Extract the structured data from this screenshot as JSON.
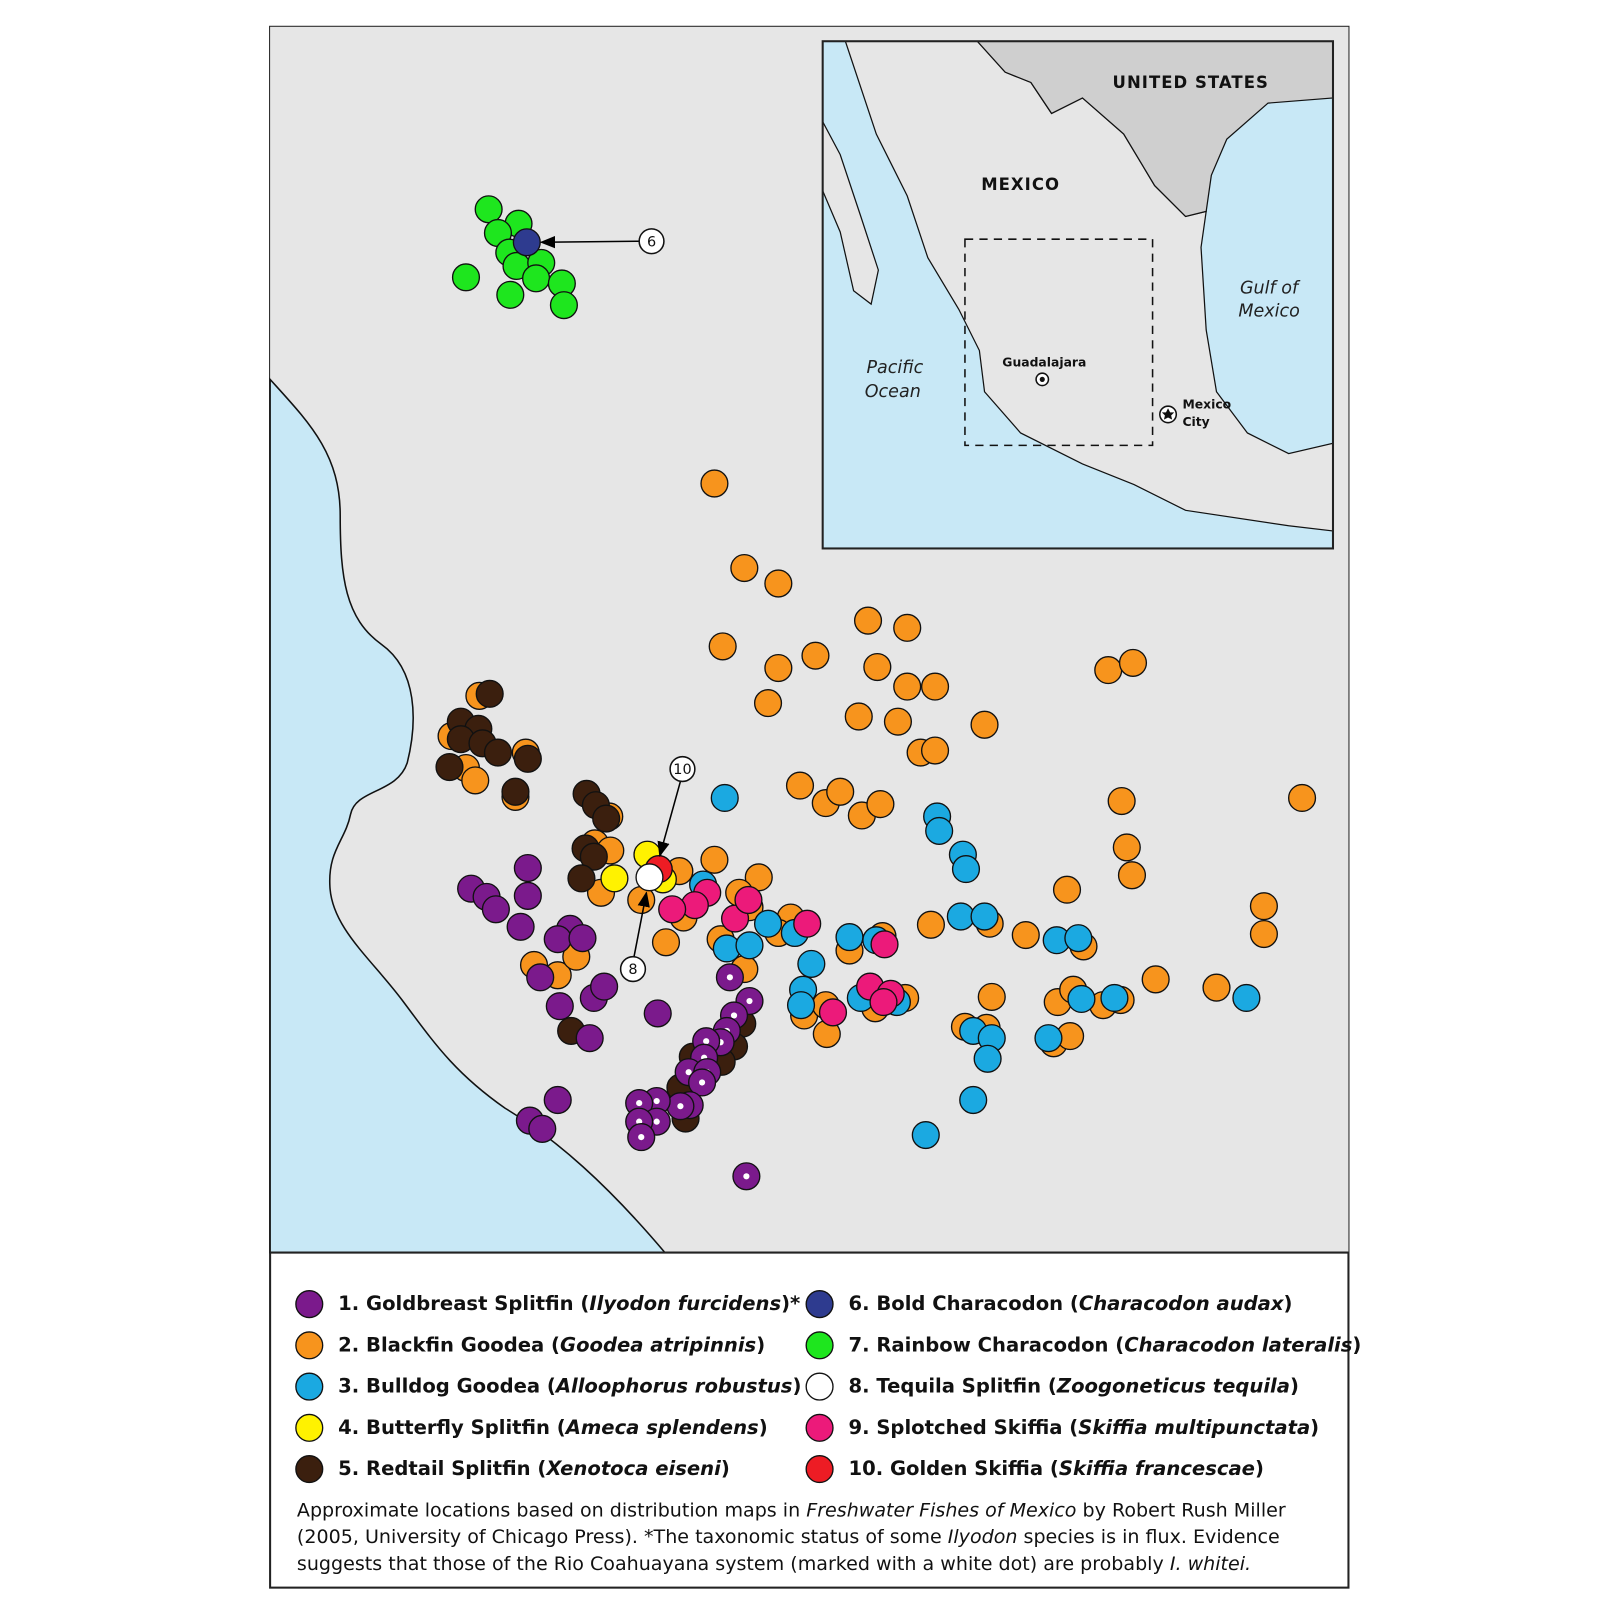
{
  "inset": {
    "united_states": "UNITED STATES",
    "mexico": "MEXICO",
    "gulf": [
      "Gulf of",
      "Mexico"
    ],
    "pacific": [
      "Pacific",
      "Ocean"
    ],
    "guadalajara": "Guadalajara",
    "mexico_city": [
      "Mexico",
      "City"
    ]
  },
  "callouts": [
    "6",
    "10",
    "8"
  ],
  "legend": [
    {
      "color": "#7b1a8c",
      "parts": [
        {
          "text": "1. Goldbreast Splitfin ("
        },
        {
          "text": "Ilyodon furcidens",
          "italic": true
        },
        {
          "text": ")*"
        }
      ]
    },
    {
      "color": "#f7941d",
      "parts": [
        {
          "text": "2. Blackfin Goodea ("
        },
        {
          "text": "Goodea atripinnis",
          "italic": true
        },
        {
          "text": ")"
        }
      ]
    },
    {
      "color": "#1ba9e1",
      "parts": [
        {
          "text": "3. Bulldog Goodea ("
        },
        {
          "text": "Alloophorus robustus",
          "italic": true
        },
        {
          "text": ")"
        }
      ]
    },
    {
      "color": "#fff200",
      "parts": [
        {
          "text": "4. Butterfly Splitfin ("
        },
        {
          "text": "Ameca splendens",
          "italic": true
        },
        {
          "text": ")"
        }
      ]
    },
    {
      "color": "#3b1f0e",
      "parts": [
        {
          "text": "5. Redtail Splitfin ("
        },
        {
          "text": "Xenotoca eiseni",
          "italic": true
        },
        {
          "text": ")"
        }
      ]
    },
    {
      "color": "#2e3b8f",
      "parts": [
        {
          "text": "6. Bold Characodon ("
        },
        {
          "text": "Characodon audax",
          "italic": true
        },
        {
          "text": ")"
        }
      ]
    },
    {
      "color": "#1ee61e",
      "parts": [
        {
          "text": "7. Rainbow Characodon ("
        },
        {
          "text": "Characodon lateralis",
          "italic": true
        },
        {
          "text": ")"
        }
      ]
    },
    {
      "color": "#ffffff",
      "parts": [
        {
          "text": "8. Tequila Splitfin ("
        },
        {
          "text": "Zoogoneticus tequila",
          "italic": true
        },
        {
          "text": ")"
        }
      ]
    },
    {
      "color": "#ec1a7a",
      "parts": [
        {
          "text": "9. Splotched Skiffia ("
        },
        {
          "text": "Skiffia multipunctata",
          "italic": true
        },
        {
          "text": ")"
        }
      ]
    },
    {
      "color": "#ed1c24",
      "parts": [
        {
          "text": "10. Golden Skiffia ("
        },
        {
          "text": "Skiffia francescae",
          "italic": true
        },
        {
          "text": ")"
        }
      ]
    }
  ],
  "caption": [
    [
      {
        "text": "Approximate locations based on distribution maps in "
      },
      {
        "text": "Freshwater Fishes of Mexico",
        "italic": true
      },
      {
        "text": " by Robert Rush Miller"
      }
    ],
    [
      {
        "text": "(2005, University of Chicago Press). *The taxonomic status of some "
      },
      {
        "text": "Ilyodon",
        "italic": true
      },
      {
        "text": " species is in flux. Evidence"
      }
    ],
    [
      {
        "text": "suggests that those of the Rio Coahuayana system (marked with a white dot) are probably "
      },
      {
        "text": "I. whitei.",
        "italic": true
      }
    ]
  ]
}
